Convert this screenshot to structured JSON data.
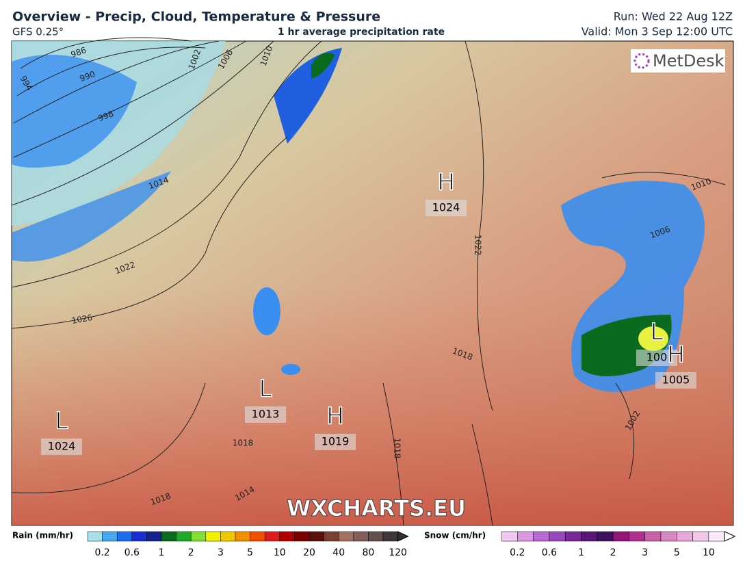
{
  "header": {
    "title": "Overview - Precip, Cloud, Temperature & Pressure",
    "model": "GFS 0.25°",
    "subtitle": "1 hr average precipitation rate",
    "run": "Run: Wed 22 Aug 12Z",
    "valid": "Valid: Mon 3 Sep 12:00 UTC"
  },
  "map": {
    "logo": "MetDesk",
    "watermark": "WXCHARTS.EU",
    "centers": [
      {
        "type": "H",
        "pressure": "1024"
      },
      {
        "type": "L",
        "pressure": "1013"
      },
      {
        "type": "H",
        "pressure": "1019"
      },
      {
        "type": "L",
        "pressure": "1024"
      },
      {
        "type": "L",
        "pressure": "100"
      },
      {
        "type": "H",
        "pressure": "1005"
      }
    ],
    "isobar_labels": [
      "986",
      "990",
      "994",
      "998",
      "1002",
      "1006",
      "1010",
      "1014",
      "1022",
      "1026",
      "1018",
      "1022",
      "1010",
      "1006",
      "1002",
      "1014",
      "1018",
      "1018",
      "1018"
    ]
  },
  "legend": {
    "rain": {
      "label": "Rain (mm/hr)",
      "ticks": [
        "0.2",
        "0.6",
        "1",
        "2",
        "3",
        "5",
        "10",
        "20",
        "40",
        "80",
        "120"
      ],
      "colors": [
        "#a8e0e8",
        "#4aa8f0",
        "#1e6ef0",
        "#1a2fd0",
        "#14248a",
        "#0a6a1e",
        "#22a82a",
        "#84e030",
        "#f0f000",
        "#f0c800",
        "#f09000",
        "#f05000",
        "#d81e1e",
        "#b00000",
        "#7a0000",
        "#5a1010",
        "#7a4030",
        "#a07060",
        "#806058",
        "#605050",
        "#403838"
      ]
    },
    "snow": {
      "label": "Snow (cm/hr)",
      "ticks": [
        "0.2",
        "0.6",
        "1",
        "2",
        "3",
        "5",
        "10"
      ],
      "colors": [
        "#f0c8f0",
        "#d898e0",
        "#b868d0",
        "#9848b8",
        "#782898",
        "#581878",
        "#401060",
        "#901878",
        "#b03090",
        "#c860a8",
        "#d888c0",
        "#e8a8d8",
        "#f0c8e8",
        "#f8e8f8"
      ]
    }
  }
}
